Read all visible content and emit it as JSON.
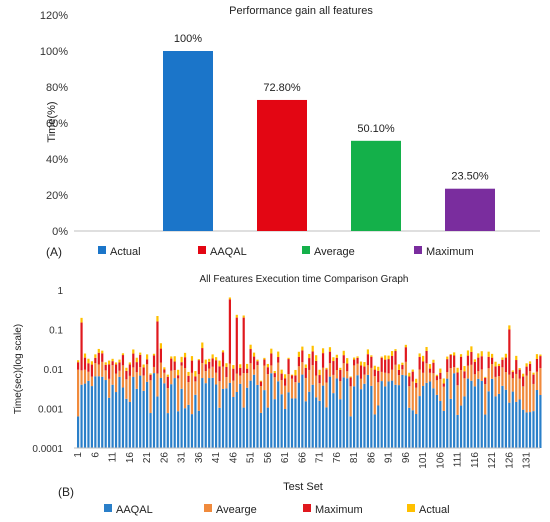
{
  "chart_data": [
    {
      "panel_label": "(A)",
      "type": "bar",
      "title": "Performance gain all features",
      "ylabel": "Time(%)",
      "ylim": [
        0,
        120
      ],
      "yticks": [
        "0%",
        "20%",
        "40%",
        "60%",
        "80%",
        "100%",
        "120%"
      ],
      "grid": false,
      "legend_position": "bottom",
      "categories": [
        "Actual",
        "AAQAL",
        "Average",
        "Maximum"
      ],
      "values": [
        100,
        72.8,
        50.1,
        23.5
      ],
      "data_labels": [
        "100%",
        "72.80%",
        "50.10%",
        "23.50%"
      ],
      "colors": [
        "#1b75c9",
        "#e30613",
        "#14b04a",
        "#7a2d9e"
      ]
    },
    {
      "panel_label": "(B)",
      "type": "bar",
      "stacked": true,
      "title": "All Features Execution time Comparison Graph",
      "xlabel": "Test Set",
      "ylabel": "Time(sec)(log scale)",
      "yscale": "log",
      "ylim": [
        0.0001,
        1
      ],
      "yticks": [
        "0.0001",
        "0.001",
        "0.01",
        "0.1",
        "1"
      ],
      "xtick_labels": [
        "1",
        "6",
        "11",
        "16",
        "21",
        "26",
        "31",
        "36",
        "41",
        "46",
        "51",
        "56",
        "61",
        "66",
        "71",
        "76",
        "81",
        "86",
        "91",
        "96",
        "101",
        "106",
        "111",
        "116",
        "121",
        "126",
        "131"
      ],
      "grid": false,
      "legend_position": "bottom",
      "series": [
        {
          "name": "AAQAL",
          "color": "#2a7fc9"
        },
        {
          "name": "Avearge",
          "color": "#f08a3c"
        },
        {
          "name": "Maximum",
          "color": "#e0181e"
        },
        {
          "name": "Actual",
          "color": "#ffc000"
        }
      ]
    }
  ]
}
